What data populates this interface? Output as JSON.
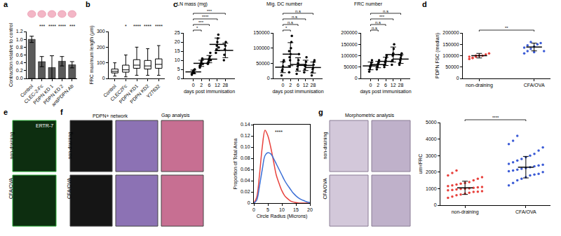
{
  "chart_data": [
    {
      "type": "bar",
      "panel": "a",
      "categories": [
        "Control",
        "CLEC-2-Fc",
        "PDPN KD 1",
        "PDPN KD 2",
        "antiPDPN Ab"
      ],
      "values": [
        1.0,
        0.43,
        0.28,
        0.44,
        0.35
      ],
      "errors": [
        0.08,
        0.13,
        0.3,
        0.12,
        0.08
      ],
      "color": "#5a5a5a",
      "y_label": "Contraction relative to control",
      "ylim": [
        0,
        1.2
      ],
      "yticks": [
        {
          "value": 0,
          "label": "0.0"
        },
        0.2,
        0.4,
        0.6,
        0.8,
        {
          "value": 1,
          "label": "1.0"
        },
        1.2
      ],
      "annotations": [
        {
          "category": "CLEC-2-Fc",
          "text": "***"
        },
        {
          "category": "PDPN KD 1",
          "text": "****"
        },
        {
          "category": "PDPN KD 2",
          "text": "****"
        },
        {
          "category": "antiPDPN Ab",
          "text": "***"
        }
      ]
    },
    {
      "type": "box",
      "panel": "b",
      "categories": [
        "Control",
        "CLEC2Fc",
        "PDPN KD1",
        "PDPN KD2",
        "Y27632"
      ],
      "lower": [
        15,
        10,
        20,
        20,
        20
      ],
      "q1": [
        35,
        40,
        65,
        60,
        65
      ],
      "median": [
        45,
        55,
        85,
        80,
        90
      ],
      "q3": [
        60,
        85,
        120,
        115,
        125
      ],
      "upper": [
        100,
        150,
        200,
        190,
        210
      ],
      "y_label": "FRC maximum length (µm)",
      "ylim": [
        0,
        300
      ],
      "yticks": [
        0,
        100,
        200,
        300
      ],
      "annotations": [
        {
          "category": "CLEC2Fc",
          "text": "*"
        },
        {
          "category": "PDPN KD1",
          "text": "****"
        },
        {
          "category": "PDPN KD2",
          "text": "****"
        },
        {
          "category": "Y27632",
          "text": "****"
        }
      ]
    },
    {
      "type": "dot",
      "panel": "c",
      "title": "LN mass (mg)",
      "x_label": "days post immunisation",
      "categories": [
        "0",
        "2",
        "6",
        "12",
        "28"
      ],
      "values": [
        [
          2,
          3,
          3.5,
          4,
          4.5,
          3,
          5
        ],
        [
          6,
          7,
          8,
          9,
          10,
          11,
          8,
          7
        ],
        [
          8,
          9,
          10,
          11,
          12,
          14,
          10
        ],
        [
          14,
          16,
          18,
          20,
          22,
          24,
          17
        ],
        [
          10,
          13,
          16,
          18,
          20
        ]
      ],
      "means": [
        3.6,
        8.3,
        10.6,
        18.7,
        15.4
      ],
      "sd": [
        1,
        1.7,
        2,
        3.5,
        4
      ],
      "color": "#000000",
      "ylim": [
        0,
        25
      ],
      "yticks": [
        0,
        5,
        10,
        15,
        20,
        25
      ],
      "comparisons": [
        {
          "from": "0",
          "to": "2",
          "text": "*"
        },
        {
          "from": "0",
          "to": "6",
          "text": "***"
        },
        {
          "from": "0",
          "to": "12",
          "text": "****"
        },
        {
          "from": "0",
          "to": "28",
          "text": "***"
        }
      ]
    },
    {
      "type": "dot",
      "title": "Mig. DC number",
      "x_label": "days post immunisation",
      "categories": [
        "0",
        "2",
        "6",
        "12",
        "28"
      ],
      "values": [
        [
          10000,
          25000,
          30000,
          40000,
          55000,
          60000
        ],
        [
          20000,
          40000,
          60000,
          80000,
          100000,
          120000,
          140000,
          90000,
          70000
        ],
        [
          15000,
          30000,
          40000,
          50000,
          60000,
          80000
        ],
        [
          20000,
          30000,
          40000,
          45000,
          55000,
          70000
        ],
        [
          10000,
          20000,
          30000,
          35000,
          45000,
          55000,
          60000
        ]
      ],
      "means": [
        37000,
        80000,
        46000,
        43000,
        36000
      ],
      "sd": [
        18000,
        38000,
        22000,
        17000,
        18000
      ],
      "color": "#000000",
      "ylim": [
        0,
        150000
      ],
      "yticks": [
        0,
        50000,
        100000,
        150000
      ],
      "comparisons": [
        {
          "from": "0",
          "to": "2",
          "text": "*"
        },
        {
          "from": "0",
          "to": "6",
          "text": "n.s"
        },
        {
          "from": "0",
          "to": "12",
          "text": "n.s"
        },
        {
          "from": "0",
          "to": "28",
          "text": "n.s"
        }
      ]
    },
    {
      "type": "dot",
      "title": "FRC number",
      "x_label": "days post immunisation",
      "categories": [
        "0",
        "2",
        "6",
        "12",
        "28"
      ],
      "values": [
        [
          30000,
          40000,
          50000,
          55000,
          60000,
          70000,
          80000
        ],
        [
          40000,
          50000,
          60000,
          65000,
          70000,
          80000
        ],
        [
          50000,
          60000,
          70000,
          80000,
          90000,
          100000
        ],
        [
          60000,
          80000,
          100000,
          110000,
          130000,
          150000
        ],
        [
          60000,
          70000,
          80000,
          90000,
          100000,
          110000
        ]
      ],
      "means": [
        55000,
        61000,
        75000,
        105000,
        85000
      ],
      "sd": [
        17000,
        14000,
        18000,
        33000,
        19000
      ],
      "color": "#000000",
      "ylim": [
        0,
        200000
      ],
      "yticks": [
        0,
        50000,
        100000,
        150000,
        200000
      ],
      "comparisons": [
        {
          "from": "0",
          "to": "2",
          "text": "n.s"
        },
        {
          "from": "0",
          "to": "6",
          "text": "n.s"
        },
        {
          "from": "0",
          "to": "12",
          "text": "***"
        },
        {
          "from": "0",
          "to": "28",
          "text": "n.s"
        }
      ]
    },
    {
      "type": "dot",
      "panel": "d",
      "y_label": "PDPN FSC (median)",
      "categories": [
        "non-draining",
        "CFA/OVA"
      ],
      "values": [
        [
          85000,
          90000,
          95000,
          100000,
          100000,
          105000,
          110000,
          95000,
          90000,
          100000
        ],
        [
          110000,
          120000,
          130000,
          140000,
          150000,
          155000,
          120000,
          135000,
          145000,
          160000,
          115000
        ]
      ],
      "means": [
        100000,
        138000
      ],
      "sd": [
        10000,
        17000
      ],
      "colors": [
        "#e8413c",
        "#3b5bd6"
      ],
      "ylim": [
        0,
        200000
      ],
      "yticks": [
        0,
        50000,
        100000,
        150000,
        200000
      ],
      "comparisons": [
        {
          "from": "non-draining",
          "to": "CFA/OVA",
          "text": "**"
        }
      ]
    },
    {
      "type": "line",
      "x_label": "Circle Radius (Microns)",
      "y_label": "Proportion of Total Area",
      "x": [
        0,
        1,
        2,
        3,
        4,
        5,
        6,
        7,
        8,
        9,
        10,
        11,
        12,
        13,
        14,
        15,
        16,
        17,
        18,
        19,
        20
      ],
      "series": [
        {
          "color": "#e8413c",
          "values": [
            0,
            0.01,
            0.05,
            0.1,
            0.13,
            0.12,
            0.1,
            0.075,
            0.05,
            0.035,
            0.022,
            0.013,
            0.008,
            0.004,
            0.002,
            0.001,
            0,
            0,
            0,
            0,
            0
          ]
        },
        {
          "color": "#3b6fd6",
          "values": [
            0,
            0.005,
            0.03,
            0.06,
            0.085,
            0.09,
            0.088,
            0.08,
            0.07,
            0.06,
            0.05,
            0.04,
            0.032,
            0.025,
            0.018,
            0.013,
            0.009,
            0.006,
            0.004,
            0.002,
            0.001
          ]
        }
      ],
      "xlim": [
        0,
        20
      ],
      "xticks": [
        0,
        5,
        10,
        15,
        20
      ],
      "ylim": [
        0,
        0.14
      ],
      "yticks": [
        0,
        0.02,
        0.04,
        0.06,
        0.08,
        {
          "value": 0.1,
          "label": "0.10"
        },
        0.12,
        0.14
      ],
      "annotations": [
        {
          "x": 7,
          "y": 0.12,
          "text": "****"
        }
      ]
    },
    {
      "type": "dot",
      "y_label": "um²/FRC",
      "categories": [
        "non-draining",
        "CFA/OVA"
      ],
      "values": [
        [
          450,
          520,
          600,
          650,
          700,
          750,
          800,
          820,
          850,
          900,
          920,
          950,
          980,
          1000,
          1020,
          1050,
          1080,
          1100,
          1150,
          1200,
          1250,
          1300,
          1350,
          1400,
          1500,
          1600,
          1700,
          1800,
          1950,
          2100
        ],
        [
          1200,
          1350,
          1500,
          1600,
          1700,
          1800,
          1850,
          1900,
          2000,
          2050,
          2100,
          2150,
          2200,
          2250,
          2300,
          2350,
          2400,
          2450,
          2500,
          2600,
          2700,
          2800,
          2900,
          3000,
          3100,
          3300,
          3500,
          3700,
          3900,
          4200
        ]
      ],
      "means": [
        1050,
        2300
      ],
      "sd": [
        400,
        650
      ],
      "colors": [
        "#e8413c",
        "#3b5bd6"
      ],
      "ylim": [
        0,
        5000
      ],
      "yticks": [
        0,
        1000,
        2000,
        3000,
        4000,
        5000
      ],
      "comparisons": [
        {
          "from": "non-draining",
          "to": "CFA/OVA",
          "text": "****"
        }
      ]
    }
  ],
  "image_panels": [
    {
      "panel": "e",
      "titles": [
        "ERTR-7"
      ],
      "rows": [
        "non-draining",
        "CFA/OVA"
      ]
    },
    {
      "panel": "f",
      "titles": [
        "PDPN+ network",
        "Gap analysis"
      ],
      "rows": [
        "non-draining",
        "CFA/OVA"
      ]
    },
    {
      "panel": "g",
      "titles": [
        "Morphometric analysis"
      ],
      "rows": [
        "non-draining",
        "CFA/OVA"
      ]
    }
  ]
}
